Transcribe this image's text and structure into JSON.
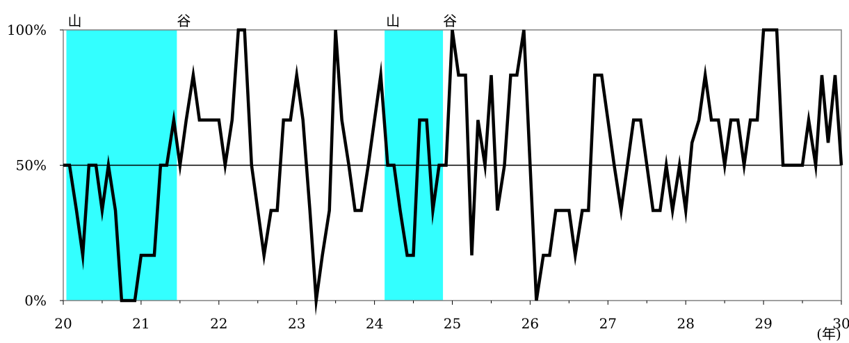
{
  "chart_data": {
    "type": "line",
    "title": "",
    "xlabel": "(年)",
    "ylabel": "",
    "xlim": [
      20,
      30
    ],
    "ylim": [
      0,
      100
    ],
    "x_ticks": [
      20,
      21,
      22,
      23,
      24,
      25,
      26,
      27,
      28,
      29,
      30
    ],
    "x_tick_labels": [
      "20",
      "21",
      "22",
      "23",
      "24",
      "25",
      "26",
      "27",
      "28",
      "29",
      "30"
    ],
    "y_ticks": [
      0,
      50,
      100
    ],
    "y_tick_labels": [
      "0%",
      "50%",
      "100%"
    ],
    "reference_line": 50,
    "colors": {
      "shade": "#33ffff",
      "line": "#000000",
      "frame": "#808080"
    },
    "shaded_periods": [
      {
        "start": 20.04,
        "end": 21.46,
        "start_label": "山",
        "end_label": "谷"
      },
      {
        "start": 24.13,
        "end": 24.88,
        "start_label": "山",
        "end_label": "谷"
      }
    ],
    "series": [
      {
        "x": [
          20.0,
          20.08,
          20.17,
          20.25,
          20.33,
          20.42,
          20.5,
          20.58,
          20.67,
          20.75,
          20.83,
          20.92,
          21.0,
          21.08,
          21.17,
          21.25,
          21.33,
          21.42,
          21.5,
          21.58,
          21.67,
          21.75,
          21.83,
          21.92,
          22.0,
          22.08,
          22.17,
          22.25,
          22.33,
          22.42,
          22.5,
          22.58,
          22.67,
          22.75,
          22.83,
          22.92,
          23.0,
          23.08,
          23.17,
          23.25,
          23.33,
          23.42,
          23.5,
          23.58,
          23.67,
          23.75,
          23.83,
          23.92,
          24.0,
          24.08,
          24.17,
          24.25,
          24.33,
          24.42,
          24.5,
          24.58,
          24.67,
          24.75,
          24.83,
          24.92,
          25.0,
          25.08,
          25.17,
          25.25,
          25.33,
          25.42,
          25.5,
          25.58,
          25.67,
          25.75,
          25.83,
          25.92,
          26.0,
          26.08,
          26.17,
          26.25,
          26.33,
          26.42,
          26.5,
          26.58,
          26.67,
          26.75,
          26.83,
          26.92,
          27.0,
          27.08,
          27.17,
          27.25,
          27.33,
          27.42,
          27.5,
          27.58,
          27.67,
          27.75,
          27.83,
          27.92,
          28.0,
          28.08,
          28.17,
          28.25,
          28.33,
          28.42,
          28.5,
          28.58,
          28.67,
          28.75,
          28.83,
          28.92,
          29.0,
          29.08,
          29.17,
          29.25,
          29.33,
          29.42,
          29.5,
          29.58,
          29.67,
          29.75,
          29.83,
          29.92,
          30.0
        ],
        "values": [
          50,
          50,
          33.3,
          16.7,
          50,
          50,
          33.3,
          50,
          33.3,
          0,
          0,
          0,
          16.7,
          16.7,
          16.7,
          50,
          50,
          66.7,
          50,
          66.7,
          83.3,
          66.7,
          66.7,
          66.7,
          66.7,
          50,
          66.7,
          100,
          100,
          50,
          33.3,
          16.7,
          33.3,
          33.3,
          66.7,
          66.7,
          83.3,
          66.7,
          33.3,
          0,
          16.7,
          33.3,
          100,
          66.7,
          50,
          33.3,
          33.3,
          50,
          66.7,
          83.3,
          50,
          50,
          33.3,
          16.7,
          16.7,
          66.7,
          66.7,
          33.3,
          50,
          50,
          100,
          83.3,
          83.3,
          16.7,
          66.7,
          50,
          83.3,
          33.3,
          50,
          83.3,
          83.3,
          100,
          50,
          0,
          16.7,
          16.7,
          33.3,
          33.3,
          33.3,
          16.7,
          33.3,
          33.3,
          83.3,
          83.3,
          66.7,
          50,
          33.3,
          50,
          66.7,
          66.7,
          50,
          33.3,
          33.3,
          50,
          33.3,
          50,
          33.3,
          58.3,
          66.7,
          83.3,
          66.7,
          66.7,
          50,
          66.7,
          66.7,
          50,
          66.7,
          66.7,
          100,
          100,
          100,
          50,
          50,
          50,
          50,
          66.7,
          50,
          83.3,
          58.3,
          83.3,
          50
        ]
      }
    ]
  }
}
